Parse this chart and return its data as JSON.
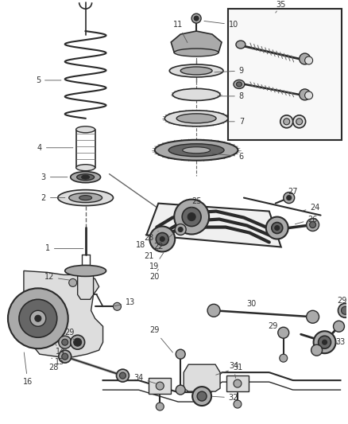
{
  "bg_color": "#ffffff",
  "fig_width": 4.38,
  "fig_height": 5.33,
  "dpi": 100,
  "dark": "#2a2a2a",
  "med": "#666666",
  "light": "#aaaaaa",
  "vlght": "#dddddd"
}
